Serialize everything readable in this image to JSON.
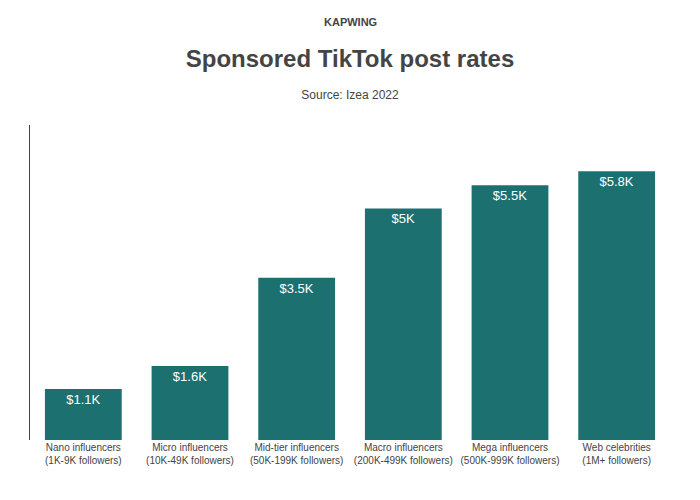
{
  "chart_data": {
    "type": "bar",
    "title": "Sponsored TikTok post rates",
    "subtitle": "Source: Izea 2022",
    "annotations": [
      "KAPWING"
    ],
    "categories": [
      "Nano influencers\n(1K-9K followers)",
      "Micro influencers\n(10K-49K followers)",
      "Mid-tier influencers\n(50K-199K followers)",
      "Macro influencers\n(200K-499K followers)",
      "Mega influencers\n(500K-999K followers)",
      "Web celebrities\n(1M+ followers)"
    ],
    "values": [
      1.1,
      1.6,
      3.5,
      5.0,
      5.5,
      5.8
    ],
    "value_labels": [
      "$1.1K",
      "$1.6K",
      "$3.5K",
      "$5K",
      "$5.5K",
      "$5.8K"
    ],
    "data_labels": true,
    "color": "#1d7070",
    "ylim": [
      0,
      6.8
    ],
    "yticks": [],
    "tick_labels": "x",
    "grid": false
  }
}
